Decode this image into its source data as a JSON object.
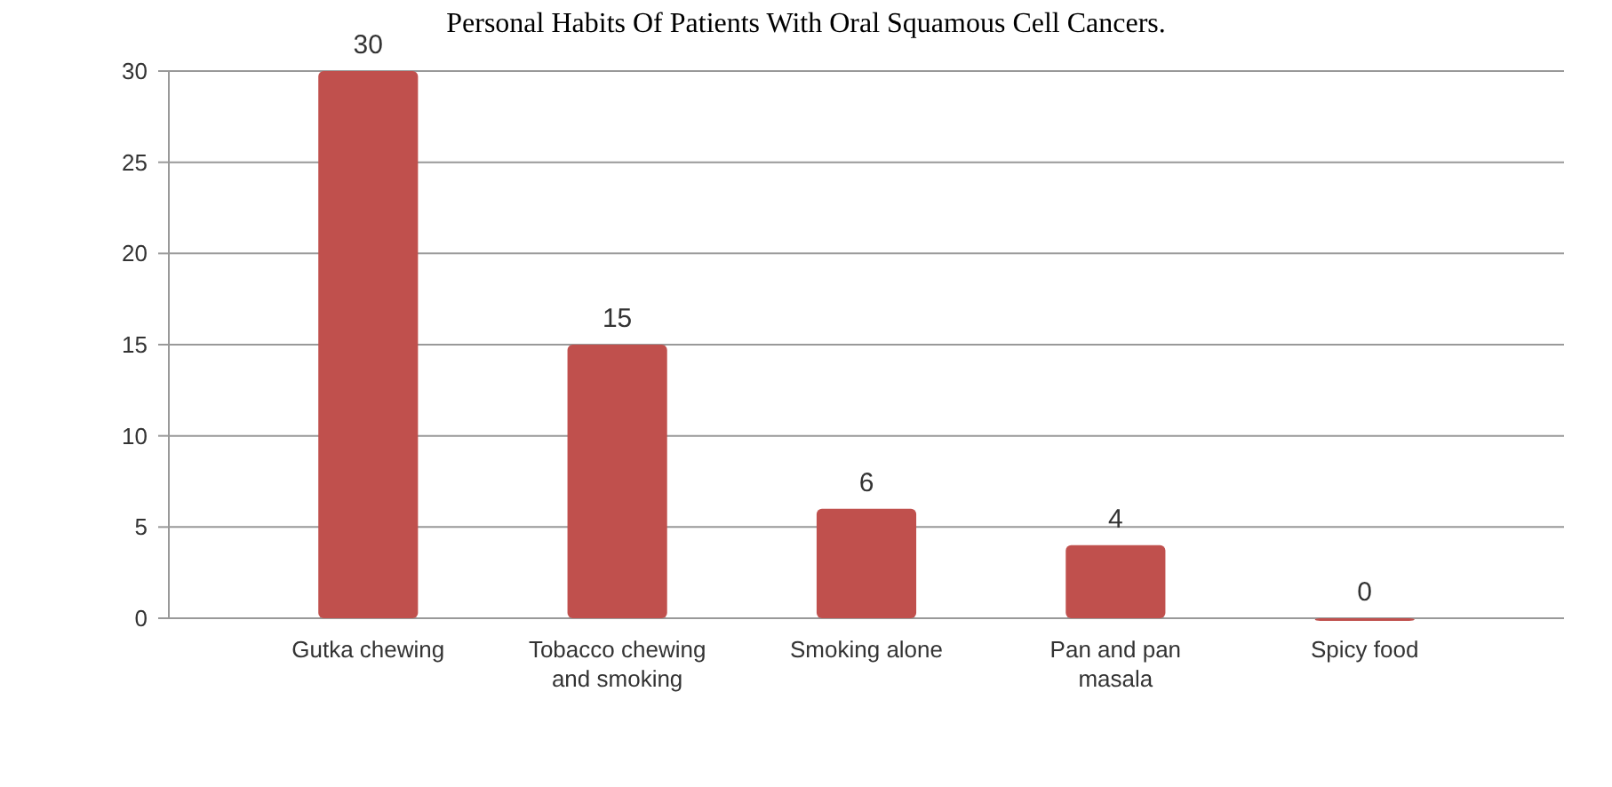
{
  "chart_data": {
    "type": "bar",
    "title": "Personal Habits Of Patients With Oral Squamous Cell Cancers.",
    "categories": [
      "Gutka chewing",
      "Tobacco chewing and smoking",
      "Smoking alone",
      "Pan and pan masala",
      "Spicy food"
    ],
    "values": [
      30,
      15,
      6,
      4,
      0
    ],
    "color": "#c0504d",
    "ylim": [
      0,
      30
    ],
    "yticks": [
      0,
      5,
      10,
      15,
      20,
      25,
      30
    ],
    "grid": "y",
    "data_labels": true
  }
}
